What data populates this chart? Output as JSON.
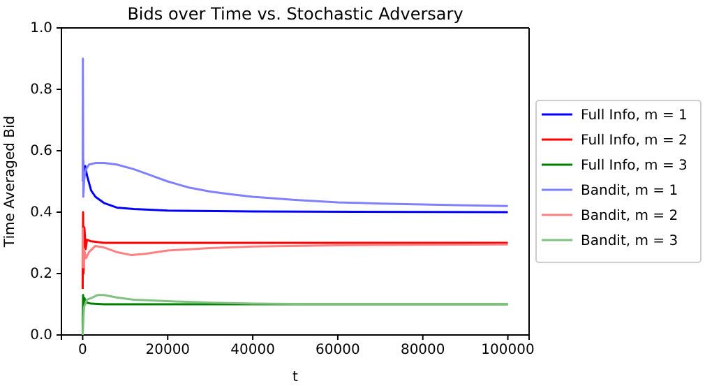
{
  "chart_data": {
    "type": "line",
    "title": "Bids over Time vs. Stochastic Adversary",
    "xlabel": "t",
    "ylabel": "Time Averaged Bid",
    "xlim": [
      -5000,
      105000
    ],
    "ylim": [
      0,
      1
    ],
    "xticks": [
      0,
      20000,
      40000,
      60000,
      80000,
      100000
    ],
    "yticks": [
      {
        "value": 0,
        "label": "0.0"
      },
      0.2,
      0.4,
      0.6,
      0.8,
      {
        "value": 1,
        "label": "1.0"
      }
    ],
    "legend": "right",
    "grid": false,
    "series": [
      {
        "name": "Full Info, m = 1",
        "color": "#0000ff",
        "x": [
          100,
          300,
          600,
          1000,
          2000,
          3000,
          5000,
          8000,
          12000,
          20000,
          40000,
          100000
        ],
        "values": [
          0.57,
          0.5,
          0.55,
          0.52,
          0.47,
          0.45,
          0.43,
          0.415,
          0.41,
          0.405,
          0.402,
          0.4
        ]
      },
      {
        "name": "Full Info, m = 2",
        "color": "#ff0000",
        "x": [
          0,
          100,
          200,
          400,
          700,
          1000,
          2000,
          5000,
          20000,
          100000
        ],
        "values": [
          0.15,
          0.4,
          0.2,
          0.35,
          0.28,
          0.31,
          0.305,
          0.3,
          0.3,
          0.3
        ]
      },
      {
        "name": "Full Info, m = 3",
        "color": "#008000",
        "x": [
          0,
          100,
          200,
          400,
          700,
          1000,
          2000,
          5000,
          20000,
          100000
        ],
        "values": [
          0.0,
          0.13,
          0.08,
          0.12,
          0.11,
          0.105,
          0.102,
          0.1,
          0.1,
          0.1
        ]
      },
      {
        "name": "Bandit, m = 1",
        "color": "#8080ff",
        "x": [
          0,
          50,
          150,
          400,
          800,
          1500,
          3000,
          5000,
          8000,
          12000,
          16000,
          20000,
          25000,
          30000,
          35000,
          40000,
          50000,
          60000,
          70000,
          80000,
          90000,
          100000
        ],
        "values": [
          0.5,
          0.9,
          0.45,
          0.52,
          0.54,
          0.555,
          0.56,
          0.56,
          0.555,
          0.54,
          0.52,
          0.5,
          0.48,
          0.467,
          0.458,
          0.45,
          0.44,
          0.432,
          0.428,
          0.425,
          0.422,
          0.42
        ]
      },
      {
        "name": "Bandit, m = 2",
        "color": "#ff8080",
        "x": [
          0,
          100,
          300,
          800,
          1500,
          3000,
          5000,
          8000,
          11500,
          15000,
          20000,
          30000,
          40000,
          60000,
          80000,
          100000
        ],
        "values": [
          0.35,
          0.22,
          0.28,
          0.25,
          0.27,
          0.29,
          0.285,
          0.27,
          0.26,
          0.265,
          0.275,
          0.283,
          0.288,
          0.292,
          0.294,
          0.295
        ]
      },
      {
        "name": "Bandit, m = 3",
        "color": "#80c080",
        "x": [
          0,
          300,
          1000,
          2000,
          3500,
          5000,
          8000,
          12000,
          20000,
          30000,
          40000,
          60000,
          100000
        ],
        "values": [
          0.0,
          0.09,
          0.115,
          0.12,
          0.13,
          0.13,
          0.122,
          0.115,
          0.11,
          0.105,
          0.102,
          0.1,
          0.1
        ]
      }
    ]
  }
}
